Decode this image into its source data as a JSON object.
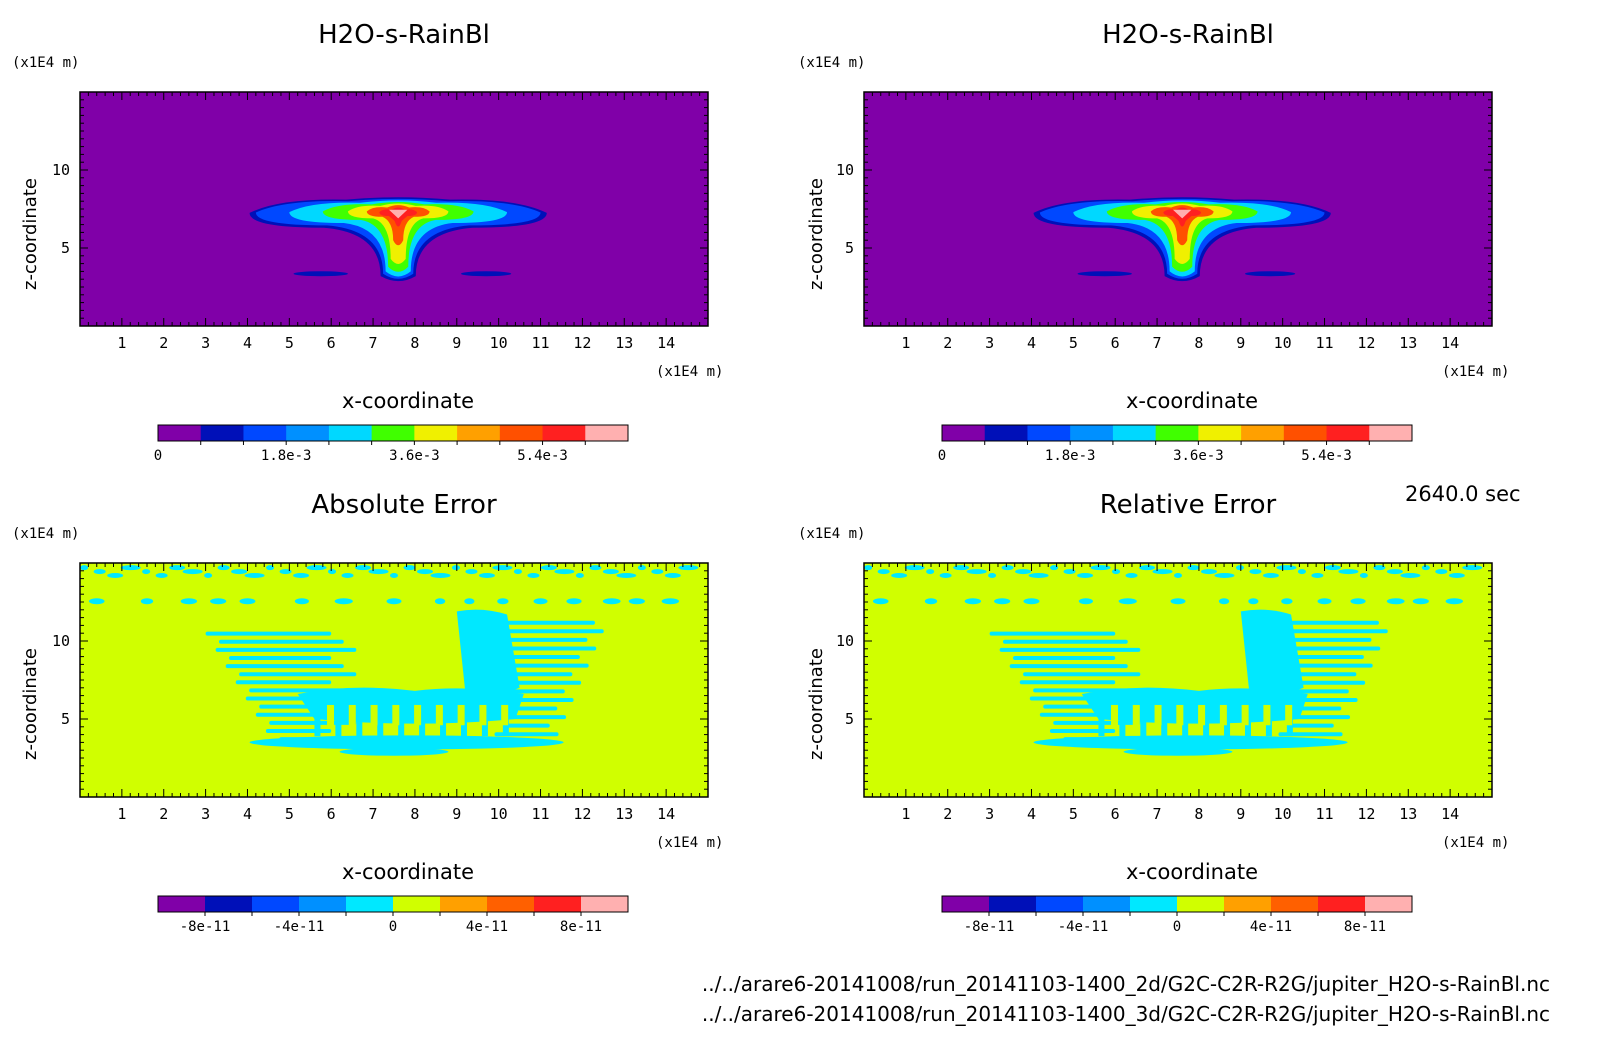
{
  "chart_data": [
    {
      "type": "heatmap",
      "title": "H2O-s-RainBl",
      "xlabel": "x-coordinate",
      "ylabel": "z-coordinate",
      "x_unit": "(x1E4 m)",
      "y_unit": "(x1E4 m)",
      "xlim": [
        0,
        15
      ],
      "ylim": [
        0,
        15
      ],
      "x_ticks": [
        1,
        2,
        3,
        4,
        5,
        6,
        7,
        8,
        9,
        10,
        11,
        12,
        13,
        14
      ],
      "y_ticks": [
        5,
        10
      ],
      "colorbar": {
        "levels": 11,
        "tick_labels": [
          "0",
          "1.8e-3",
          "3.6e-3",
          "5.4e-3"
        ],
        "colors": [
          "#8000a8",
          "#0010b8",
          "#0048ff",
          "#0090ff",
          "#00d8ff",
          "#40ff00",
          "#f0f000",
          "#ffa000",
          "#ff5000",
          "#ff2020",
          "#ffb0b0"
        ]
      },
      "field_type": "plume"
    },
    {
      "type": "heatmap",
      "title": "H2O-s-RainBl",
      "xlabel": "x-coordinate",
      "ylabel": "z-coordinate",
      "x_unit": "(x1E4 m)",
      "y_unit": "(x1E4 m)",
      "xlim": [
        0,
        15
      ],
      "ylim": [
        0,
        15
      ],
      "x_ticks": [
        1,
        2,
        3,
        4,
        5,
        6,
        7,
        8,
        9,
        10,
        11,
        12,
        13,
        14
      ],
      "y_ticks": [
        5,
        10
      ],
      "colorbar": {
        "levels": 11,
        "tick_labels": [
          "0",
          "1.8e-3",
          "3.6e-3",
          "5.4e-3"
        ],
        "colors": [
          "#8000a8",
          "#0010b8",
          "#0048ff",
          "#0090ff",
          "#00d8ff",
          "#40ff00",
          "#f0f000",
          "#ffa000",
          "#ff5000",
          "#ff2020",
          "#ffb0b0"
        ]
      },
      "field_type": "plume"
    },
    {
      "type": "heatmap",
      "title": "Absolute Error",
      "xlabel": "x-coordinate",
      "ylabel": "z-coordinate",
      "x_unit": "(x1E4 m)",
      "y_unit": "(x1E4 m)",
      "xlim": [
        0,
        15
      ],
      "ylim": [
        0,
        15
      ],
      "x_ticks": [
        1,
        2,
        3,
        4,
        5,
        6,
        7,
        8,
        9,
        10,
        11,
        12,
        13,
        14
      ],
      "y_ticks": [
        5,
        10
      ],
      "colorbar": {
        "levels": 10,
        "tick_labels": [
          "-8e-11",
          "-4e-11",
          "0",
          "4e-11",
          "8e-11"
        ],
        "colors": [
          "#8000a8",
          "#0010b8",
          "#0048ff",
          "#0090ff",
          "#00e8ff",
          "#d0ff00",
          "#ffa000",
          "#ff6000",
          "#ff2020",
          "#ffb0b0"
        ]
      },
      "field_type": "error"
    },
    {
      "type": "heatmap",
      "title": "Relative Error",
      "xlabel": "x-coordinate",
      "ylabel": "z-coordinate",
      "x_unit": "(x1E4 m)",
      "y_unit": "(x1E4 m)",
      "xlim": [
        0,
        15
      ],
      "ylim": [
        0,
        15
      ],
      "x_ticks": [
        1,
        2,
        3,
        4,
        5,
        6,
        7,
        8,
        9,
        10,
        11,
        12,
        13,
        14
      ],
      "y_ticks": [
        5,
        10
      ],
      "colorbar": {
        "levels": 10,
        "tick_labels": [
          "-8e-11",
          "-4e-11",
          "0",
          "4e-11",
          "8e-11"
        ],
        "colors": [
          "#8000a8",
          "#0010b8",
          "#0048ff",
          "#0090ff",
          "#00e8ff",
          "#d0ff00",
          "#ffa000",
          "#ff6000",
          "#ff2020",
          "#ffb0b0"
        ]
      },
      "field_type": "error"
    }
  ],
  "time_label": "2640.0 sec",
  "files": [
    "../../arare6-20141008/run_20141103-1400_2d/G2C-C2R-R2G/jupiter_H2O-s-RainBl.nc",
    "../../arare6-20141008/run_20141103-1400_3d/G2C-C2R-R2G/jupiter_H2O-s-RainBl.nc"
  ]
}
